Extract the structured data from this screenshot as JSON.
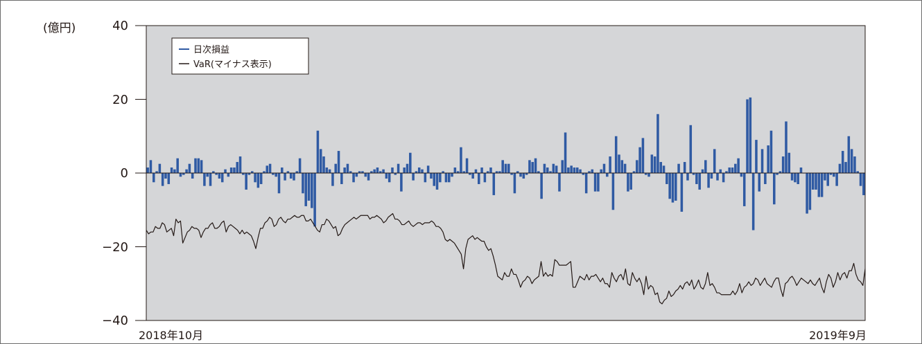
{
  "chart_data": {
    "type": "bar",
    "unit_label": "(億円)",
    "ylim": [
      -40,
      40
    ],
    "yticks": [
      "40",
      "20",
      "0",
      "−20",
      "−40"
    ],
    "ytick_values": [
      40,
      20,
      0,
      -20,
      -40
    ],
    "x_start_label": "2018年10月",
    "x_end_label": "2019年9月",
    "grid": false,
    "legend_position": "top-left",
    "colors": {
      "plot_background": "#d5d6d8",
      "bar": "#2f5aa3",
      "line": "#231815"
    },
    "series": [
      {
        "name": "日次損益",
        "kind": "bar",
        "values": [
          1.5,
          3.5,
          -2.5,
          0.5,
          2.5,
          -3.5,
          -1.5,
          -3,
          1.5,
          1,
          4,
          -1,
          -0.5,
          1,
          2.5,
          -1.5,
          4,
          4,
          3.5,
          -3.5,
          -1,
          -3.5,
          0.5,
          -0.5,
          -1.5,
          -2.5,
          1,
          -1,
          1.5,
          1.5,
          3,
          4.5,
          -0.5,
          -4.5,
          -0.5,
          0.5,
          -2.5,
          -4,
          -3,
          0.5,
          2,
          2.5,
          -0.5,
          -1,
          -5.5,
          1.5,
          -2,
          0.5,
          -1.5,
          -2,
          0.5,
          4,
          -5.5,
          -9,
          -7.5,
          -9.5,
          -14.5,
          11.5,
          6.5,
          4.5,
          1.5,
          1,
          -3.5,
          2.5,
          6,
          -3,
          1.5,
          2.5,
          0.5,
          -2.5,
          -1,
          0.5,
          0.5,
          -1,
          -2,
          0.5,
          1,
          1.5,
          0.5,
          1,
          -1.5,
          -2.5,
          1.5,
          -0.5,
          2.5,
          -5,
          1.5,
          2.5,
          5.5,
          -2,
          0.5,
          1.5,
          1,
          -2.5,
          2,
          -1.5,
          -3.5,
          -4.5,
          -2.5,
          0.5,
          -2.5,
          -2.5,
          -1,
          1.5,
          0.5,
          7,
          0.5,
          4,
          -0.5,
          -1.5,
          1,
          -3,
          1.5,
          -2.5,
          0.5,
          1.5,
          -6,
          0.5,
          0.5,
          3.5,
          2.5,
          2.5,
          -0.5,
          -5.5,
          0.5,
          -1,
          -1.5,
          -0.5,
          3.5,
          3,
          4,
          0.5,
          -7,
          2.5,
          1.5,
          0.5,
          2.5,
          2,
          -5,
          3.5,
          11,
          1.5,
          2,
          1.5,
          1.5,
          1,
          -0.5,
          -5.5,
          0.5,
          1,
          -5,
          -5,
          1,
          2.5,
          -1,
          4.5,
          -10,
          10,
          5,
          3.5,
          2.5,
          -5,
          -4.5,
          0.5,
          3.5,
          7,
          9.5,
          -0.5,
          -1,
          5,
          4.5,
          16,
          3,
          2,
          -3,
          -7,
          -8,
          -7.5,
          2.5,
          -10.5,
          3,
          -2,
          13,
          -0.5,
          -3,
          -4.5,
          1,
          3.5,
          -4,
          -1.5,
          6.5,
          -2,
          1,
          -2.5,
          0.5,
          1.5,
          1.5,
          2.5,
          4,
          -1,
          -9,
          20,
          20.5,
          -15.5,
          9,
          -5,
          6.5,
          -3,
          7.5,
          11.5,
          -8.5,
          -0.5,
          0.5,
          4.5,
          14,
          5.5,
          -2,
          -2.5,
          -3,
          1.5,
          0,
          -11,
          -10,
          -4.5,
          -4.5,
          -6.5,
          -6.5,
          -2,
          -3.5,
          -0.5,
          -1,
          -3.5,
          2.5,
          6,
          3,
          10,
          6.5,
          4.5,
          0.5,
          -3.5,
          -6
        ],
        "color": "#2f5aa3"
      },
      {
        "name": "VaR(マイナス表示)",
        "kind": "line",
        "values": [
          -15.5,
          -16.5,
          -16,
          -16,
          -14.5,
          -15,
          -15,
          -13.5,
          -14,
          -16,
          -15.5,
          -15,
          -17,
          -12.5,
          -13.5,
          -13,
          -19,
          -17.5,
          -16,
          -15.5,
          -14.5,
          -15,
          -15,
          -15.5,
          -17.5,
          -16,
          -15,
          -15,
          -14,
          -13.5,
          -15,
          -15,
          -14.5,
          -13.5,
          -13,
          -16,
          -14.5,
          -14,
          -14.5,
          -15,
          -15.5,
          -16.5,
          -15.5,
          -16.5,
          -16,
          -16.5,
          -17,
          -18.5,
          -20.5,
          -17.5,
          -15,
          -15,
          -13.5,
          -13,
          -12,
          -12.5,
          -14.5,
          -14,
          -12.5,
          -12,
          -13,
          -13.5,
          -12.5,
          -12.5,
          -12,
          -11.5,
          -12,
          -12,
          -11.5,
          -11.5,
          -13,
          -13,
          -12.5,
          -13.5,
          -14.5,
          -15.5,
          -16,
          -14,
          -14,
          -12.5,
          -13,
          -14,
          -15,
          -14.5,
          -17,
          -16.5,
          -15,
          -14,
          -13.5,
          -13,
          -12.5,
          -12,
          -12.5,
          -12,
          -11.5,
          -11.5,
          -11.5,
          -11.5,
          -12.5,
          -12,
          -12,
          -11.5,
          -12,
          -12.5,
          -13.5,
          -13,
          -12,
          -11.5,
          -11,
          -12.5,
          -12.5,
          -13,
          -14,
          -14,
          -13.5,
          -13,
          -14,
          -14.5,
          -14,
          -13.5,
          -13.5,
          -14,
          -13.5,
          -13.5,
          -13.5,
          -13,
          -13.5,
          -14.5,
          -14.5,
          -15,
          -16,
          -18,
          -18.5,
          -18,
          -18.5,
          -19,
          -20,
          -21,
          -22,
          -26,
          -20.5,
          -18,
          -17.5,
          -17,
          -18,
          -17.5,
          -18,
          -18.5,
          -18.5,
          -20,
          -21,
          -20.5,
          -22.5,
          -25,
          -28,
          -28.5,
          -29,
          -27,
          -28,
          -28,
          -26,
          -27.5,
          -27.5,
          -29,
          -31,
          -29.5,
          -29,
          -28,
          -28.5,
          -30,
          -29,
          -28.5,
          -28,
          -24,
          -28,
          -27,
          -28,
          -27.5,
          -28,
          -23.5,
          -24,
          -25,
          -25,
          -25,
          -25,
          -24.5,
          -24,
          -31,
          -31,
          -29.5,
          -28,
          -28.5,
          -29,
          -27.5,
          -29,
          -28,
          -28,
          -27.5,
          -28.5,
          -29.5,
          -28.5,
          -30,
          -30,
          -31,
          -27,
          -28.5,
          -29.5,
          -28,
          -27.5,
          -29,
          -26,
          -30,
          -30.5,
          -27,
          -28.5,
          -29.5,
          -28.5,
          -30,
          -33,
          -28,
          -31.5,
          -30.5,
          -31,
          -33,
          -32.5,
          -35,
          -35.5,
          -34.5,
          -34,
          -32,
          -33.5,
          -33,
          -32,
          -31.5,
          -30.5,
          -31.5,
          -30,
          -29.5,
          -30.5,
          -29,
          -31.5,
          -30.5,
          -29,
          -31,
          -31.5,
          -30,
          -27,
          -30.5,
          -30,
          -31,
          -32.5,
          -32.5,
          -33,
          -33,
          -33,
          -33,
          -33,
          -32,
          -33,
          -32,
          -30,
          -32.5,
          -31,
          -30.5,
          -29.5,
          -30.5,
          -30,
          -28.5,
          -29,
          -30.5,
          -29.5,
          -28.5,
          -30,
          -30.5,
          -31,
          -29.5,
          -28.5,
          -28.5,
          -31.5,
          -33.5,
          -30,
          -29.5,
          -28.5,
          -28,
          -29,
          -30.5,
          -29.5,
          -28.5,
          -29,
          -29.5,
          -30,
          -29,
          -30,
          -30.5,
          -29.5,
          -28.5,
          -31,
          -32.5,
          -29.5,
          -27.5,
          -28.5,
          -31,
          -29.5,
          -27,
          -29,
          -27.5,
          -27,
          -28.5,
          -26.5,
          -26.5,
          -24.5,
          -27.5,
          -29,
          -29.5,
          -30.5,
          -26
        ],
        "color": "#231815"
      }
    ]
  }
}
